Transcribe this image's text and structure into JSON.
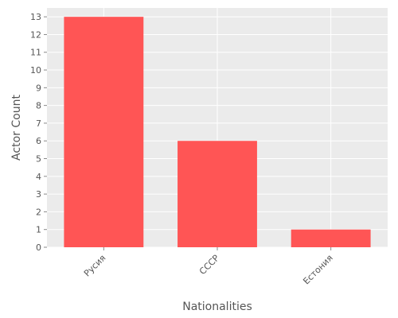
{
  "chart_data": {
    "type": "bar",
    "categories": [
      "Русия",
      "СССР",
      "Естония"
    ],
    "values": [
      13,
      6,
      1
    ],
    "title": "",
    "xlabel": "Nationalities",
    "ylabel": "Actor Count",
    "ylim": [
      0,
      13.5
    ],
    "yticks": [
      0,
      1,
      2,
      3,
      4,
      5,
      6,
      7,
      8,
      9,
      10,
      11,
      12,
      13
    ],
    "grid": true,
    "legend": "none",
    "colors": {
      "bar": "#ff5555",
      "plot_background": "#ebebeb",
      "grid": "#ffffff",
      "text": "#555555"
    }
  }
}
